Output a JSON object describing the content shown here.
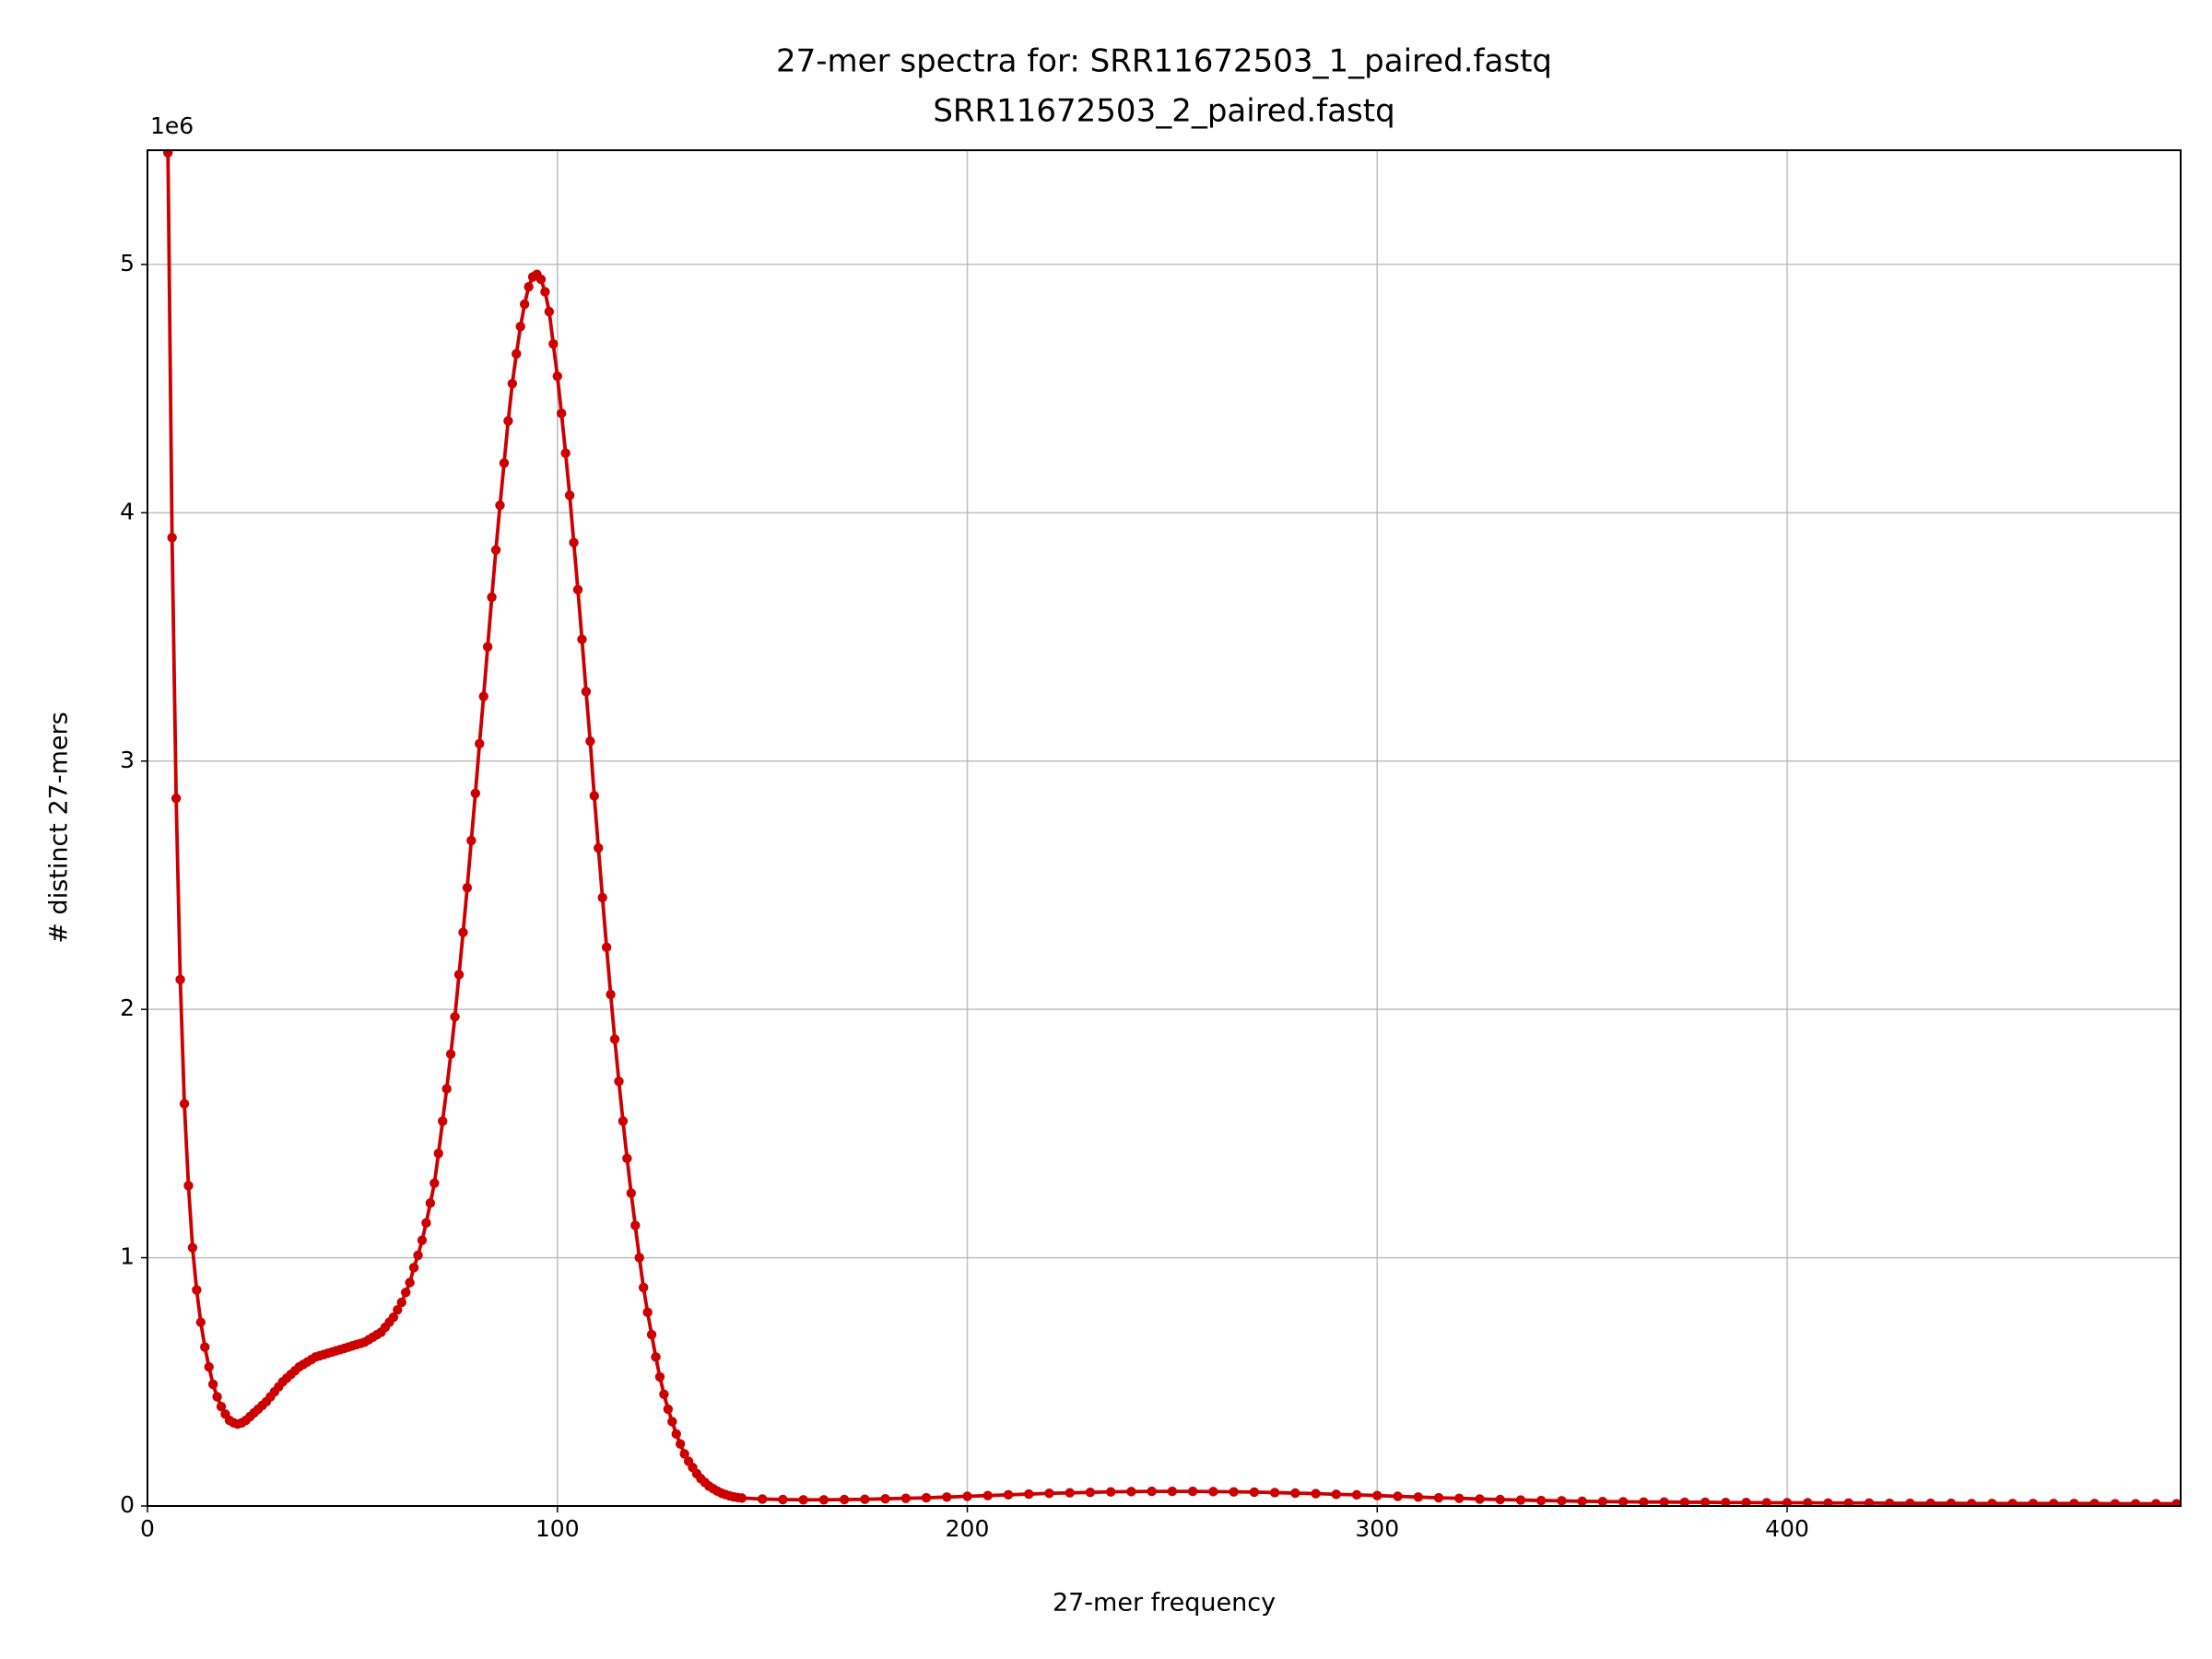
{
  "chart_data": {
    "type": "line",
    "title": [
      "27-mer spectra for: SRR11672503_1_paired.fastq",
      "SRR11672503_2_paired.fastq"
    ],
    "x_label": "27-mer frequency",
    "y_label": "# distinct 27-mers",
    "y_offset_label": "1e6",
    "color": "#cc0000",
    "grid": true,
    "xlim": [
      0,
      496
    ],
    "ylim": [
      0,
      5.46
    ],
    "xticks": [
      0,
      100,
      200,
      300,
      400
    ],
    "yticks": [
      0,
      1,
      2,
      3,
      4,
      5
    ],
    "x": [
      5,
      6,
      7,
      8,
      9,
      10,
      11,
      12,
      13,
      14,
      15,
      16,
      17,
      18,
      19,
      20,
      21,
      22,
      23,
      24,
      25,
      26,
      27,
      28,
      29,
      30,
      31,
      32,
      33,
      34,
      35,
      36,
      37,
      38,
      39,
      40,
      41,
      42,
      43,
      44,
      45,
      46,
      47,
      48,
      49,
      50,
      51,
      52,
      53,
      54,
      55,
      56,
      57,
      58,
      59,
      60,
      61,
      62,
      63,
      64,
      65,
      66,
      67,
      68,
      69,
      70,
      71,
      72,
      73,
      74,
      75,
      76,
      77,
      78,
      79,
      80,
      81,
      82,
      83,
      84,
      85,
      86,
      87,
      88,
      89,
      90,
      91,
      92,
      93,
      94,
      95,
      96,
      97,
      98,
      99,
      100,
      101,
      102,
      103,
      104,
      105,
      106,
      107,
      108,
      109,
      110,
      111,
      112,
      113,
      114,
      115,
      116,
      117,
      118,
      119,
      120,
      121,
      122,
      123,
      124,
      125,
      126,
      127,
      128,
      129,
      130,
      131,
      132,
      133,
      134,
      135,
      136,
      137,
      138,
      139,
      140,
      141,
      142,
      143,
      144,
      145,
      150,
      155,
      160,
      165,
      170,
      175,
      180,
      185,
      190,
      195,
      200,
      205,
      210,
      215,
      220,
      225,
      230,
      235,
      240,
      245,
      250,
      255,
      260,
      265,
      270,
      275,
      280,
      285,
      290,
      295,
      300,
      305,
      310,
      315,
      320,
      325,
      330,
      335,
      340,
      345,
      350,
      355,
      360,
      365,
      370,
      375,
      380,
      385,
      390,
      395,
      400,
      405,
      410,
      415,
      420,
      425,
      430,
      435,
      440,
      445,
      450,
      455,
      460,
      465,
      470,
      475,
      480,
      485,
      490,
      495
    ],
    "values": [
      5.45,
      3.9,
      2.85,
      2.12,
      1.62,
      1.29,
      1.04,
      0.87,
      0.74,
      0.64,
      0.56,
      0.49,
      0.44,
      0.4,
      0.37,
      0.345,
      0.335,
      0.33,
      0.335,
      0.345,
      0.36,
      0.375,
      0.39,
      0.405,
      0.42,
      0.44,
      0.46,
      0.48,
      0.5,
      0.515,
      0.53,
      0.545,
      0.56,
      0.57,
      0.58,
      0.59,
      0.6,
      0.605,
      0.61,
      0.615,
      0.62,
      0.625,
      0.63,
      0.635,
      0.64,
      0.645,
      0.65,
      0.655,
      0.66,
      0.67,
      0.68,
      0.69,
      0.7,
      0.72,
      0.74,
      0.76,
      0.79,
      0.82,
      0.86,
      0.9,
      0.96,
      1.01,
      1.07,
      1.14,
      1.22,
      1.3,
      1.42,
      1.55,
      1.68,
      1.82,
      1.97,
      2.14,
      2.31,
      2.49,
      2.68,
      2.87,
      3.07,
      3.26,
      3.46,
      3.66,
      3.85,
      4.03,
      4.2,
      4.37,
      4.52,
      4.64,
      4.75,
      4.84,
      4.91,
      4.95,
      4.96,
      4.94,
      4.89,
      4.81,
      4.68,
      4.55,
      4.4,
      4.24,
      4.07,
      3.88,
      3.69,
      3.49,
      3.28,
      3.08,
      2.86,
      2.65,
      2.45,
      2.25,
      2.06,
      1.88,
      1.71,
      1.55,
      1.4,
      1.26,
      1.13,
      1.0,
      0.88,
      0.78,
      0.69,
      0.6,
      0.52,
      0.45,
      0.39,
      0.34,
      0.29,
      0.25,
      0.21,
      0.18,
      0.155,
      0.13,
      0.11,
      0.095,
      0.08,
      0.07,
      0.06,
      0.052,
      0.046,
      0.041,
      0.037,
      0.034,
      0.032,
      0.028,
      0.026,
      0.025,
      0.025,
      0.026,
      0.027,
      0.029,
      0.031,
      0.033,
      0.036,
      0.039,
      0.042,
      0.045,
      0.048,
      0.051,
      0.053,
      0.055,
      0.057,
      0.058,
      0.059,
      0.059,
      0.059,
      0.058,
      0.057,
      0.056,
      0.054,
      0.052,
      0.05,
      0.047,
      0.045,
      0.042,
      0.039,
      0.036,
      0.033,
      0.031,
      0.028,
      0.026,
      0.024,
      0.022,
      0.021,
      0.019,
      0.018,
      0.017,
      0.016,
      0.016,
      0.015,
      0.015,
      0.014,
      0.014,
      0.013,
      0.013,
      0.013,
      0.012,
      0.012,
      0.012,
      0.011,
      0.011,
      0.011,
      0.011,
      0.01,
      0.01,
      0.01,
      0.01,
      0.01,
      0.01,
      0.01,
      0.009,
      0.009,
      0.009,
      0.009
    ]
  }
}
